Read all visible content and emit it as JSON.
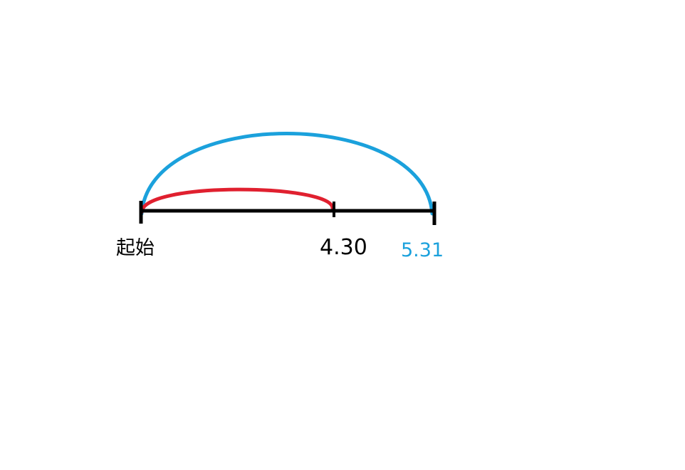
{
  "labels": {
    "start": "起始",
    "mid": "4.30",
    "end": "5.31"
  },
  "colors": {
    "line": "#000000",
    "red_arc": "#e0202f",
    "blue_arc": "#1ba1dc",
    "end_label": "#1ba1dc",
    "background": "#ffffff"
  }
}
